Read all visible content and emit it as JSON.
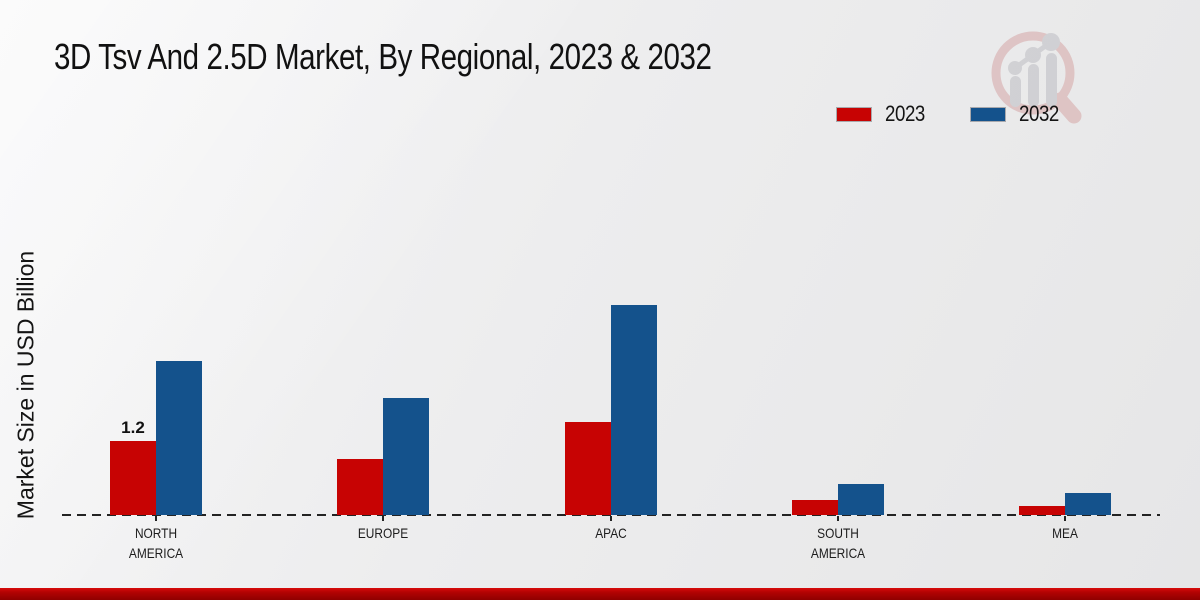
{
  "title": "3D Tsv And 2.5D Market, By Regional, 2023 & 2032",
  "y_axis_label": "Market Size in USD Billion",
  "legend": {
    "items": [
      {
        "label": "2023",
        "color": "#c70303"
      },
      {
        "label": "2032",
        "color": "#14528c"
      }
    ]
  },
  "colors": {
    "series_2023": "#c70303",
    "series_2032": "#14528c",
    "baseline": "#232323",
    "footer_bar": "#b30303",
    "background": "#ececed"
  },
  "watermark": {
    "name": "magnifier-bar-chart-logo"
  },
  "chart_data": {
    "type": "bar",
    "title": "3D Tsv And 2.5D Market, By Regional, 2023 & 2032",
    "xlabel": "",
    "ylabel": "Market Size in USD Billion",
    "categories": [
      "NORTH AMERICA",
      "EUROPE",
      "APAC",
      "SOUTH AMERICA",
      "MEA"
    ],
    "category_lines": [
      [
        "NORTH",
        "AMERICA"
      ],
      [
        "EUROPE"
      ],
      [
        "APAC"
      ],
      [
        "SOUTH",
        "AMERICA"
      ],
      [
        "MEA"
      ]
    ],
    "series": [
      {
        "name": "2023",
        "color": "#c70303",
        "values": [
          1.2,
          0.9,
          1.5,
          0.25,
          0.15
        ],
        "labels": [
          "1.2",
          "",
          "",
          "",
          ""
        ]
      },
      {
        "name": "2032",
        "color": "#14528c",
        "values": [
          2.5,
          1.9,
          3.4,
          0.5,
          0.35
        ],
        "labels": [
          "",
          "",
          "",
          "",
          ""
        ]
      }
    ],
    "ylim": [
      0,
      4.5
    ],
    "grid": false,
    "y_axis_ticks_visible": false,
    "legend_position": "top-right",
    "baseline_style": "dashed"
  }
}
